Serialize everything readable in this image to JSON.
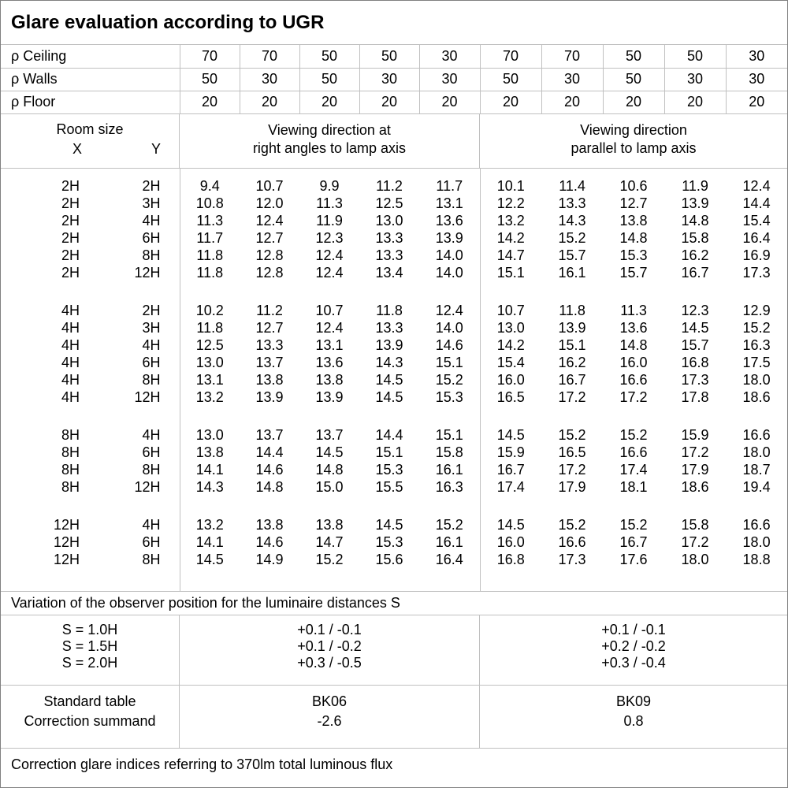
{
  "title": "Glare evaluation according to UGR",
  "colors": {
    "background": "#ffffff",
    "text": "#000000",
    "grid_line": "#c0c0c0",
    "outer_border": "#808080"
  },
  "reflectances": {
    "rows": [
      {
        "label": "ρ Ceiling",
        "values": [
          "70",
          "70",
          "50",
          "50",
          "30",
          "70",
          "70",
          "50",
          "50",
          "30"
        ]
      },
      {
        "label": "ρ Walls",
        "values": [
          "50",
          "30",
          "50",
          "30",
          "30",
          "50",
          "30",
          "50",
          "30",
          "30"
        ]
      },
      {
        "label": "ρ Floor",
        "values": [
          "20",
          "20",
          "20",
          "20",
          "20",
          "20",
          "20",
          "20",
          "20",
          "20"
        ]
      }
    ]
  },
  "room_header": {
    "label": "Room size",
    "x_label": "X",
    "y_label": "Y",
    "viewing_right_angles": {
      "line1": "Viewing direction at",
      "line2": "right angles to lamp axis"
    },
    "viewing_parallel": {
      "line1": "Viewing direction",
      "line2": "parallel to lamp axis"
    }
  },
  "ugr_table": {
    "groups": [
      {
        "rows": [
          {
            "x": "2H",
            "y": "2H",
            "right_angles": [
              "9.4",
              "10.7",
              "9.9",
              "11.2",
              "11.7"
            ],
            "parallel": [
              "10.1",
              "11.4",
              "10.6",
              "11.9",
              "12.4"
            ]
          },
          {
            "x": "2H",
            "y": "3H",
            "right_angles": [
              "10.8",
              "12.0",
              "11.3",
              "12.5",
              "13.1"
            ],
            "parallel": [
              "12.2",
              "13.3",
              "12.7",
              "13.9",
              "14.4"
            ]
          },
          {
            "x": "2H",
            "y": "4H",
            "right_angles": [
              "11.3",
              "12.4",
              "11.9",
              "13.0",
              "13.6"
            ],
            "parallel": [
              "13.2",
              "14.3",
              "13.8",
              "14.8",
              "15.4"
            ]
          },
          {
            "x": "2H",
            "y": "6H",
            "right_angles": [
              "11.7",
              "12.7",
              "12.3",
              "13.3",
              "13.9"
            ],
            "parallel": [
              "14.2",
              "15.2",
              "14.8",
              "15.8",
              "16.4"
            ]
          },
          {
            "x": "2H",
            "y": "8H",
            "right_angles": [
              "11.8",
              "12.8",
              "12.4",
              "13.3",
              "14.0"
            ],
            "parallel": [
              "14.7",
              "15.7",
              "15.3",
              "16.2",
              "16.9"
            ]
          },
          {
            "x": "2H",
            "y": "12H",
            "right_angles": [
              "11.8",
              "12.8",
              "12.4",
              "13.4",
              "14.0"
            ],
            "parallel": [
              "15.1",
              "16.1",
              "15.7",
              "16.7",
              "17.3"
            ]
          }
        ]
      },
      {
        "rows": [
          {
            "x": "4H",
            "y": "2H",
            "right_angles": [
              "10.2",
              "11.2",
              "10.7",
              "11.8",
              "12.4"
            ],
            "parallel": [
              "10.7",
              "11.8",
              "11.3",
              "12.3",
              "12.9"
            ]
          },
          {
            "x": "4H",
            "y": "3H",
            "right_angles": [
              "11.8",
              "12.7",
              "12.4",
              "13.3",
              "14.0"
            ],
            "parallel": [
              "13.0",
              "13.9",
              "13.6",
              "14.5",
              "15.2"
            ]
          },
          {
            "x": "4H",
            "y": "4H",
            "right_angles": [
              "12.5",
              "13.3",
              "13.1",
              "13.9",
              "14.6"
            ],
            "parallel": [
              "14.2",
              "15.1",
              "14.8",
              "15.7",
              "16.3"
            ]
          },
          {
            "x": "4H",
            "y": "6H",
            "right_angles": [
              "13.0",
              "13.7",
              "13.6",
              "14.3",
              "15.1"
            ],
            "parallel": [
              "15.4",
              "16.2",
              "16.0",
              "16.8",
              "17.5"
            ]
          },
          {
            "x": "4H",
            "y": "8H",
            "right_angles": [
              "13.1",
              "13.8",
              "13.8",
              "14.5",
              "15.2"
            ],
            "parallel": [
              "16.0",
              "16.7",
              "16.6",
              "17.3",
              "18.0"
            ]
          },
          {
            "x": "4H",
            "y": "12H",
            "right_angles": [
              "13.2",
              "13.9",
              "13.9",
              "14.5",
              "15.3"
            ],
            "parallel": [
              "16.5",
              "17.2",
              "17.2",
              "17.8",
              "18.6"
            ]
          }
        ]
      },
      {
        "rows": [
          {
            "x": "8H",
            "y": "4H",
            "right_angles": [
              "13.0",
              "13.7",
              "13.7",
              "14.4",
              "15.1"
            ],
            "parallel": [
              "14.5",
              "15.2",
              "15.2",
              "15.9",
              "16.6"
            ]
          },
          {
            "x": "8H",
            "y": "6H",
            "right_angles": [
              "13.8",
              "14.4",
              "14.5",
              "15.1",
              "15.8"
            ],
            "parallel": [
              "15.9",
              "16.5",
              "16.6",
              "17.2",
              "18.0"
            ]
          },
          {
            "x": "8H",
            "y": "8H",
            "right_angles": [
              "14.1",
              "14.6",
              "14.8",
              "15.3",
              "16.1"
            ],
            "parallel": [
              "16.7",
              "17.2",
              "17.4",
              "17.9",
              "18.7"
            ]
          },
          {
            "x": "8H",
            "y": "12H",
            "right_angles": [
              "14.3",
              "14.8",
              "15.0",
              "15.5",
              "16.3"
            ],
            "parallel": [
              "17.4",
              "17.9",
              "18.1",
              "18.6",
              "19.4"
            ]
          }
        ]
      },
      {
        "rows": [
          {
            "x": "12H",
            "y": "4H",
            "right_angles": [
              "13.2",
              "13.8",
              "13.8",
              "14.5",
              "15.2"
            ],
            "parallel": [
              "14.5",
              "15.2",
              "15.2",
              "15.8",
              "16.6"
            ]
          },
          {
            "x": "12H",
            "y": "6H",
            "right_angles": [
              "14.1",
              "14.6",
              "14.7",
              "15.3",
              "16.1"
            ],
            "parallel": [
              "16.0",
              "16.6",
              "16.7",
              "17.2",
              "18.0"
            ]
          },
          {
            "x": "12H",
            "y": "8H",
            "right_angles": [
              "14.5",
              "14.9",
              "15.2",
              "15.6",
              "16.4"
            ],
            "parallel": [
              "16.8",
              "17.3",
              "17.6",
              "18.0",
              "18.8"
            ]
          }
        ]
      }
    ]
  },
  "variation_note": "Variation of the observer position for the luminaire distances S",
  "observer_variation": {
    "rows": [
      {
        "label": "S = 1.0H",
        "right_angles": "+0.1 / -0.1",
        "parallel": "+0.1 / -0.1"
      },
      {
        "label": "S = 1.5H",
        "right_angles": "+0.1 / -0.2",
        "parallel": "+0.2 / -0.2"
      },
      {
        "label": "S = 2.0H",
        "right_angles": "+0.3 / -0.5",
        "parallel": "+0.3 / -0.4"
      }
    ]
  },
  "summary": {
    "labels": [
      "Standard table",
      "Correction summand"
    ],
    "right_angles": [
      "BK06",
      "-2.6"
    ],
    "parallel": [
      "BK09",
      "0.8"
    ]
  },
  "footer": "Correction glare indices referring to 370lm total luminous flux"
}
